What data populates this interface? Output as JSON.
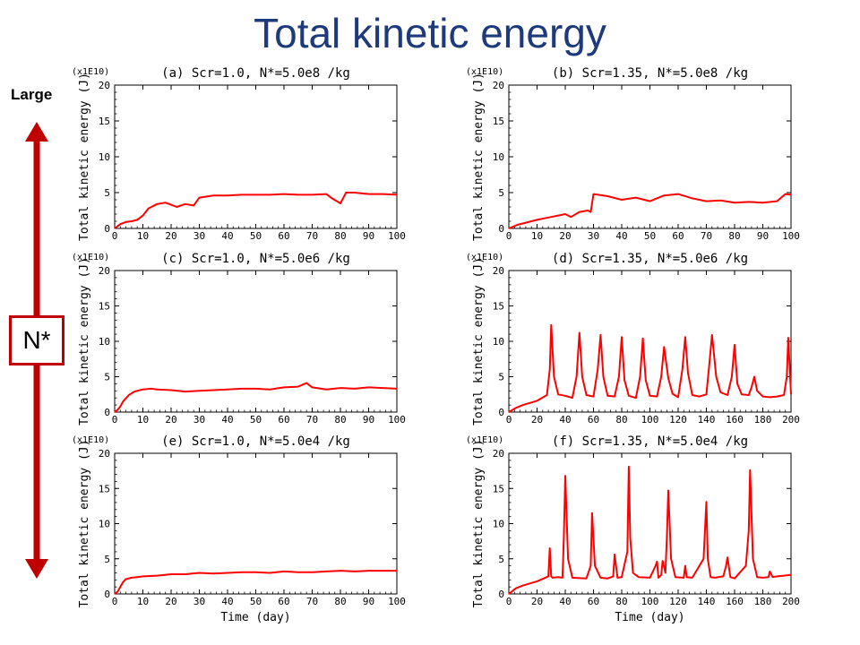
{
  "page_title": "Total kinetic energy",
  "side": {
    "top_label": "Large",
    "box_label": "N*"
  },
  "colors": {
    "title": "#1f3a7a",
    "series": "#ff0000",
    "arrow": "#c00000"
  },
  "chart_data": [
    {
      "type": "line",
      "title": "(a) Scr=1.0, N*=5.0e8 /kg",
      "multiplier": "(x1E10)",
      "ylabel": "Total kinetic energy  (J)",
      "xlabel": "",
      "xlim": [
        0,
        100
      ],
      "ylim": [
        0,
        20
      ],
      "xticks": [
        0,
        10,
        20,
        30,
        40,
        50,
        60,
        70,
        80,
        90,
        100
      ],
      "yticks": [
        0,
        5,
        10,
        15,
        20
      ],
      "x": [
        0,
        2,
        4,
        6,
        8,
        10,
        12,
        15,
        18,
        20,
        22,
        25,
        28,
        30,
        35,
        40,
        45,
        50,
        55,
        60,
        65,
        70,
        75,
        77,
        80,
        82,
        85,
        90,
        95,
        100
      ],
      "y": [
        0,
        0.6,
        0.9,
        1.0,
        1.2,
        1.8,
        2.8,
        3.4,
        3.6,
        3.3,
        3.0,
        3.4,
        3.2,
        4.3,
        4.6,
        4.6,
        4.7,
        4.7,
        4.7,
        4.8,
        4.7,
        4.7,
        4.8,
        4.2,
        3.5,
        5.0,
        5.0,
        4.8,
        4.8,
        4.7
      ]
    },
    {
      "type": "line",
      "title": "(b) Scr=1.35, N*=5.0e8 /kg",
      "multiplier": "(x1E10)",
      "ylabel": "Total kinetic energy  (J)",
      "xlabel": "",
      "xlim": [
        0,
        100
      ],
      "ylim": [
        0,
        20
      ],
      "xticks": [
        0,
        10,
        20,
        30,
        40,
        50,
        60,
        70,
        80,
        90,
        100
      ],
      "yticks": [
        0,
        5,
        10,
        15,
        20
      ],
      "x": [
        0,
        3,
        6,
        10,
        15,
        20,
        22,
        25,
        28,
        29,
        30,
        35,
        40,
        45,
        50,
        55,
        60,
        65,
        70,
        75,
        80,
        85,
        90,
        95,
        98,
        100
      ],
      "y": [
        0,
        0.5,
        0.8,
        1.2,
        1.6,
        2.0,
        1.6,
        2.3,
        2.5,
        2.3,
        4.8,
        4.5,
        4.0,
        4.3,
        3.8,
        4.6,
        4.8,
        4.2,
        3.8,
        3.9,
        3.6,
        3.7,
        3.6,
        3.8,
        4.8,
        4.7
      ]
    },
    {
      "type": "line",
      "title": "(c) Scr=1.0, N*=5.0e6 /kg",
      "multiplier": "(x1E10)",
      "ylabel": "Total kinetic energy  (J)",
      "xlabel": "",
      "xlim": [
        0,
        100
      ],
      "ylim": [
        0,
        20
      ],
      "xticks": [
        0,
        10,
        20,
        30,
        40,
        50,
        60,
        70,
        80,
        90,
        100
      ],
      "yticks": [
        0,
        5,
        10,
        15,
        20
      ],
      "x": [
        0,
        1,
        2,
        3,
        5,
        7,
        10,
        13,
        15,
        20,
        25,
        30,
        35,
        40,
        45,
        50,
        55,
        60,
        65,
        68,
        70,
        75,
        80,
        85,
        90,
        95,
        100
      ],
      "y": [
        0,
        0.3,
        0.8,
        1.5,
        2.4,
        2.9,
        3.2,
        3.3,
        3.2,
        3.1,
        2.9,
        3.0,
        3.1,
        3.2,
        3.3,
        3.3,
        3.2,
        3.5,
        3.6,
        4.1,
        3.5,
        3.2,
        3.4,
        3.3,
        3.5,
        3.4,
        3.3
      ]
    },
    {
      "type": "line",
      "title": "(d) Scr=1.35, N*=5.0e6 /kg",
      "multiplier": "(x1E10)",
      "ylabel": "Total kinetic energy  (J)",
      "xlabel": "",
      "xlim": [
        0,
        200
      ],
      "ylim": [
        0,
        20
      ],
      "xticks": [
        0,
        20,
        40,
        60,
        80,
        100,
        120,
        140,
        160,
        180,
        200
      ],
      "yticks": [
        0,
        5,
        10,
        15,
        20
      ],
      "x": [
        0,
        5,
        10,
        20,
        27,
        29,
        30,
        32,
        35,
        40,
        45,
        48,
        50,
        52,
        55,
        60,
        63,
        65,
        67,
        70,
        75,
        78,
        80,
        82,
        85,
        90,
        93,
        95,
        97,
        100,
        105,
        108,
        110,
        113,
        116,
        120,
        123,
        125,
        127,
        130,
        135,
        140,
        142,
        144,
        147,
        150,
        155,
        158,
        160,
        162,
        165,
        170,
        172,
        174,
        176,
        180,
        185,
        190,
        195,
        197,
        198,
        200
      ],
      "y": [
        0,
        0.6,
        1.0,
        1.6,
        2.4,
        6.0,
        12.3,
        5.0,
        2.5,
        2.3,
        2.0,
        5.0,
        11.2,
        5.0,
        2.4,
        2.2,
        6.0,
        10.9,
        5.0,
        2.3,
        2.2,
        5.0,
        10.6,
        4.5,
        2.3,
        2.0,
        5.0,
        10.4,
        4.5,
        2.3,
        2.2,
        5.0,
        9.2,
        4.8,
        2.6,
        2.1,
        6.0,
        10.6,
        5.5,
        2.4,
        2.2,
        2.5,
        6.5,
        10.9,
        5.0,
        2.8,
        2.4,
        5.0,
        9.5,
        4.0,
        2.5,
        2.4,
        3.5,
        5.0,
        3.0,
        2.2,
        2.1,
        2.2,
        2.4,
        5.0,
        10.5,
        2.5
      ]
    },
    {
      "type": "line",
      "title": "(e) Scr=1.0, N*=5.0e4 /kg",
      "multiplier": "(x1E10)",
      "ylabel": "Total kinetic energy  (J)",
      "xlabel": "Time  (day)",
      "xlim": [
        0,
        100
      ],
      "ylim": [
        0,
        20
      ],
      "xticks": [
        0,
        10,
        20,
        30,
        40,
        50,
        60,
        70,
        80,
        90,
        100
      ],
      "yticks": [
        0,
        5,
        10,
        15,
        20
      ],
      "x": [
        0,
        1,
        2,
        3,
        4,
        6,
        8,
        10,
        15,
        20,
        25,
        30,
        35,
        40,
        45,
        50,
        55,
        60,
        65,
        70,
        75,
        80,
        85,
        90,
        95,
        100
      ],
      "y": [
        0,
        0.3,
        1.0,
        1.7,
        2.1,
        2.3,
        2.4,
        2.5,
        2.6,
        2.8,
        2.8,
        3.0,
        2.9,
        3.0,
        3.1,
        3.1,
        3.0,
        3.2,
        3.1,
        3.1,
        3.2,
        3.3,
        3.2,
        3.3,
        3.3,
        3.3
      ]
    },
    {
      "type": "line",
      "title": "(f) Scr=1.35, N*=5.0e4 /kg",
      "multiplier": "(x1E10)",
      "ylabel": "Total kinetic energy  (J)",
      "xlabel": "Time  (day)",
      "xlim": [
        0,
        200
      ],
      "ylim": [
        0,
        20
      ],
      "xticks": [
        0,
        20,
        40,
        60,
        80,
        100,
        120,
        140,
        160,
        180,
        200
      ],
      "yticks": [
        0,
        5,
        10,
        15,
        20
      ],
      "x": [
        0,
        5,
        10,
        20,
        28,
        29,
        30,
        31,
        35,
        38,
        39,
        40,
        42,
        45,
        55,
        58,
        59,
        61,
        65,
        70,
        74,
        75,
        77,
        80,
        84,
        85,
        86,
        88,
        92,
        100,
        104,
        105,
        106,
        108,
        109,
        111,
        112,
        113,
        115,
        118,
        124,
        125,
        126,
        130,
        138,
        140,
        141,
        143,
        146,
        152,
        154,
        155,
        157,
        160,
        168,
        170,
        171,
        173,
        176,
        180,
        184,
        185,
        187,
        190,
        195,
        200
      ],
      "y": [
        0,
        0.8,
        1.2,
        1.8,
        2.5,
        6.5,
        2.5,
        2.3,
        2.4,
        2.3,
        8.0,
        16.8,
        5.0,
        2.3,
        2.2,
        4.0,
        11.5,
        4.0,
        2.3,
        2.2,
        2.5,
        5.6,
        2.3,
        2.4,
        6.0,
        18.1,
        8.0,
        3.0,
        2.4,
        2.3,
        4.0,
        4.6,
        2.3,
        2.7,
        4.7,
        3.0,
        8.0,
        14.7,
        5.0,
        2.4,
        2.3,
        4.0,
        2.4,
        2.3,
        5.0,
        13.1,
        5.0,
        2.4,
        2.3,
        2.5,
        4.0,
        5.2,
        2.4,
        2.2,
        4.0,
        9.0,
        17.6,
        5.0,
        2.4,
        2.3,
        2.4,
        3.2,
        2.4,
        2.5,
        2.6,
        2.7
      ]
    }
  ]
}
